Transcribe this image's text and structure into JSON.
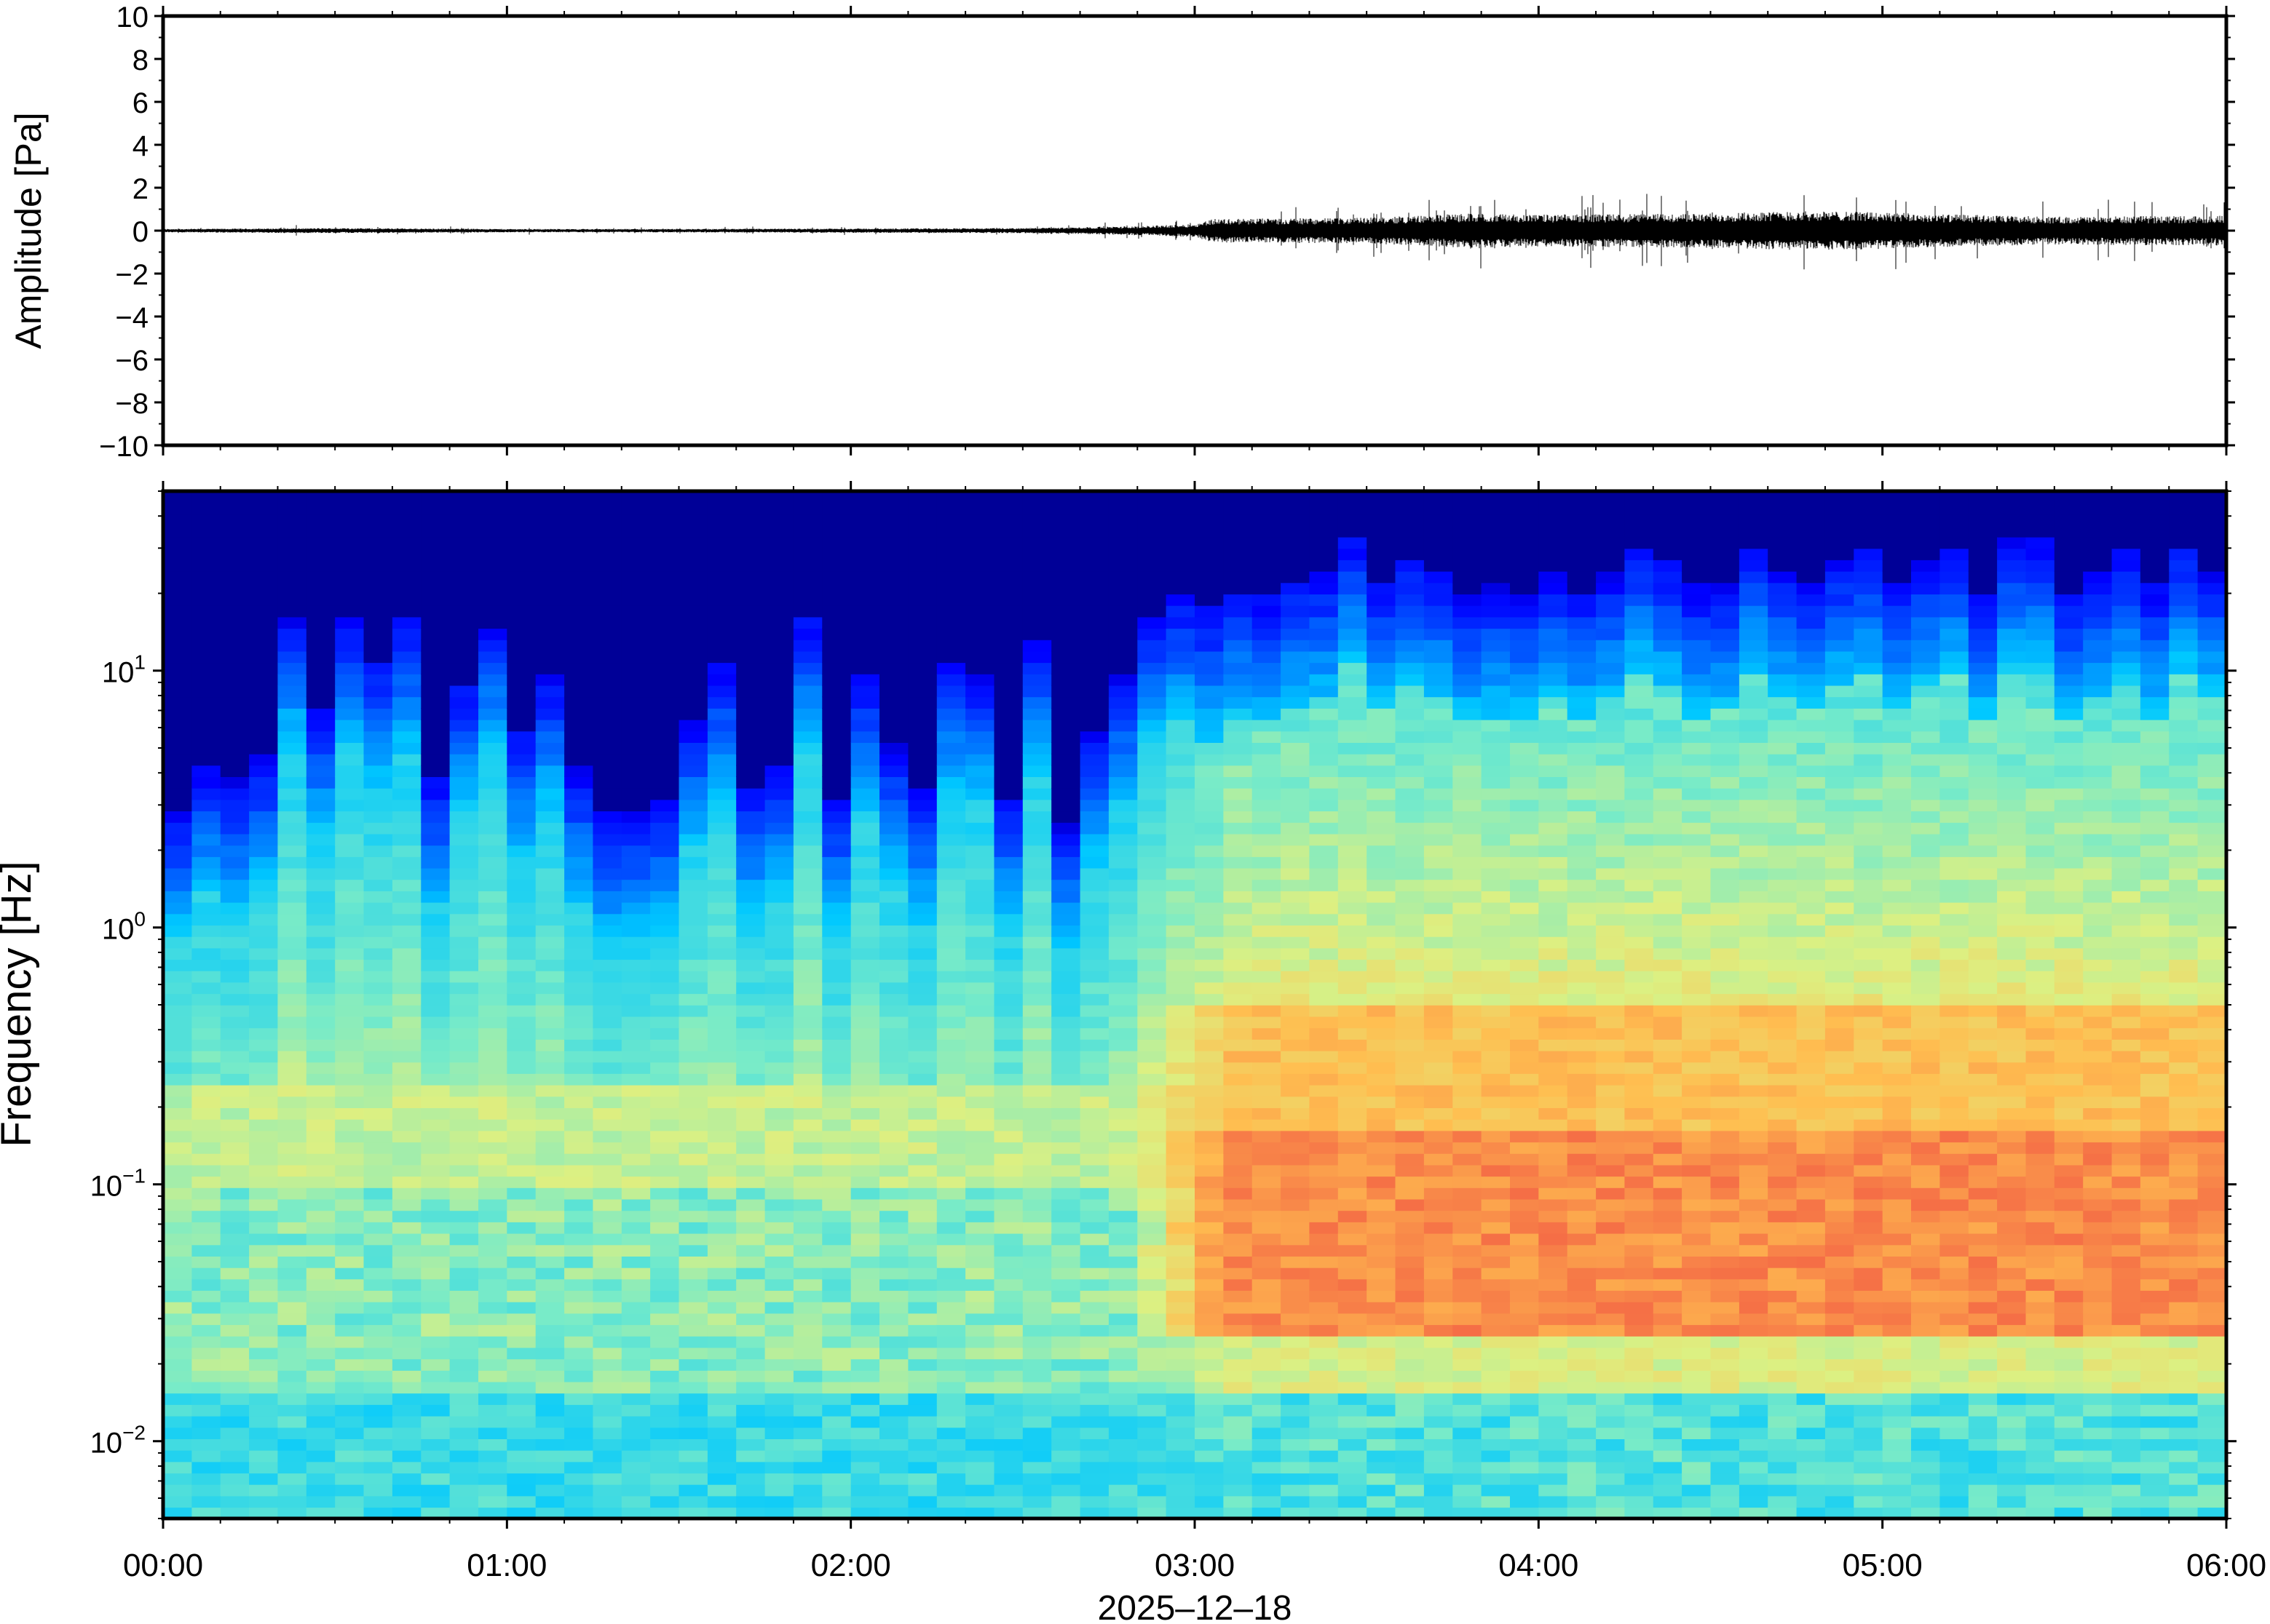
{
  "figure": {
    "date_label": "2025–12–18"
  },
  "chart_data": [
    {
      "type": "line",
      "panel": "waveform",
      "ylabel": "Amplitude [Pa]",
      "ylim": [
        -10,
        10
      ],
      "yticks": [
        {
          "value": 10,
          "label": "10"
        },
        {
          "value": 8,
          "label": "8"
        },
        {
          "value": 6,
          "label": "6"
        },
        {
          "value": 4,
          "label": "4"
        },
        {
          "value": 2,
          "label": "2"
        },
        {
          "value": 0,
          "label": "0"
        },
        {
          "value": -2,
          "label": "−2"
        },
        {
          "value": -4,
          "label": "−4"
        },
        {
          "value": -6,
          "label": "−6"
        },
        {
          "value": -8,
          "label": "−8"
        },
        {
          "value": -10,
          "label": "−10"
        }
      ],
      "xlim_hours": [
        0,
        6
      ],
      "envelope": {
        "x_hours": [
          0,
          0.5,
          1.0,
          1.5,
          2.0,
          2.5,
          2.8,
          3.0,
          3.05,
          3.5,
          3.8,
          4.0,
          4.5,
          4.7,
          4.9,
          5.2,
          5.5,
          6.0
        ],
        "amplitude_pa": [
          0.08,
          0.12,
          0.08,
          0.08,
          0.1,
          0.12,
          0.2,
          0.3,
          0.55,
          0.6,
          0.8,
          0.75,
          0.8,
          0.9,
          0.9,
          0.75,
          0.65,
          0.7
        ]
      },
      "line_color": "#000000"
    },
    {
      "type": "heatmap",
      "panel": "spectrogram",
      "ylabel": "Frequency [Hz]",
      "yscale": "log",
      "ylim_hz": [
        0.005,
        50
      ],
      "yticks": [
        {
          "value": 0.01,
          "base": "10",
          "exp": "−2"
        },
        {
          "value": 0.1,
          "base": "10",
          "exp": "−1"
        },
        {
          "value": 1,
          "base": "10",
          "exp": "0"
        },
        {
          "value": 10,
          "base": "10",
          "exp": "1"
        }
      ],
      "xlim_hours": [
        0,
        6
      ],
      "xticks": [
        {
          "value": 0,
          "label": "00:00"
        },
        {
          "value": 1,
          "label": "01:00"
        },
        {
          "value": 2,
          "label": "02:00"
        },
        {
          "value": 3,
          "label": "03:00"
        },
        {
          "value": 4,
          "label": "04:00"
        },
        {
          "value": 5,
          "label": "05:00"
        },
        {
          "value": 6,
          "label": "06:00"
        }
      ],
      "colormap": "jet",
      "noise_onset_hour": 2.8,
      "description_of_structure": {
        "quiet_top_freq_hz": 6,
        "active_top_freq_hz": 25,
        "peak_band_hz": [
          0.04,
          0.15
        ]
      }
    }
  ]
}
